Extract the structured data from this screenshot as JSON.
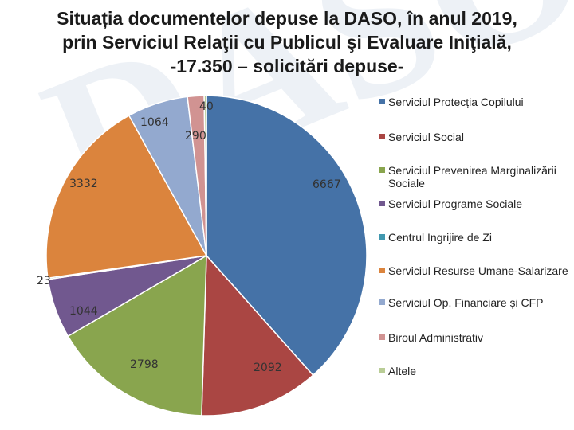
{
  "title_lines": [
    "Situația documentelor depuse la DASO, în anul 2019,",
    "prin Serviciul Relaţii cu Publicul şi Evaluare Iniţială,",
    "-17.350 – solicitări depuse-"
  ],
  "watermark_text": "DASO",
  "chart_data": {
    "type": "pie",
    "title": "Situația documentelor depuse la DASO, în anul 2019, prin Serviciul Relaţii cu Publicul şi Evaluare Iniţială, -17.350 – solicitări depuse-",
    "total": 17350,
    "legend_position": "right",
    "slices": [
      {
        "label": "Serviciul Protecția Copilului",
        "value": 6667,
        "color": "#4572a7"
      },
      {
        "label": "Serviciul Social",
        "value": 2092,
        "color": "#aa4643"
      },
      {
        "label": "Serviciul Prevenirea Marginalizării Sociale",
        "value": 2798,
        "color": "#89a54e"
      },
      {
        "label": "Serviciul Programe Sociale",
        "value": 1044,
        "color": "#71588f"
      },
      {
        "label": "Centrul Ingrijire de Zi",
        "value": 23,
        "color": "#4198af"
      },
      {
        "label": "Serviciul Resurse Umane-Salarizare",
        "value": 3332,
        "color": "#db843d"
      },
      {
        "label": "Serviciul Op. Financiare și CFP",
        "value": 1064,
        "color": "#93a9cf"
      },
      {
        "label": "Biroul Administrativ",
        "value": 290,
        "color": "#d19392"
      },
      {
        "label": "Altele",
        "value": 40,
        "color": "#b9cd96"
      }
    ]
  }
}
